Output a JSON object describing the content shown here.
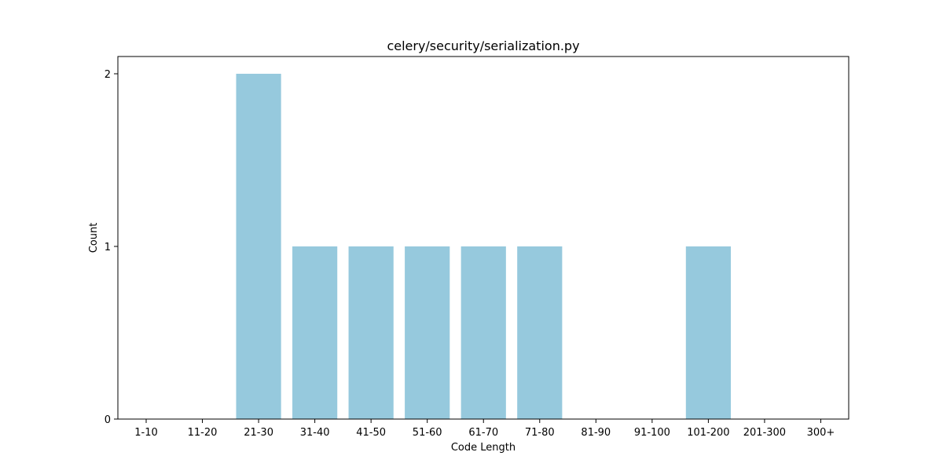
{
  "chart_data": {
    "type": "bar",
    "title": "celery/security/serialization.py",
    "xlabel": "Code Length",
    "ylabel": "Count",
    "categories": [
      "1-10",
      "11-20",
      "21-30",
      "31-40",
      "41-50",
      "51-60",
      "61-70",
      "71-80",
      "81-90",
      "91-100",
      "101-200",
      "201-300",
      "300+"
    ],
    "values": [
      0,
      0,
      2,
      1,
      1,
      1,
      1,
      1,
      0,
      0,
      1,
      0,
      0
    ],
    "ylim": [
      0,
      2.1
    ],
    "yticks": [
      0,
      1,
      2
    ],
    "grid": false,
    "legend": "none",
    "bar_color": "#96c9dd"
  }
}
